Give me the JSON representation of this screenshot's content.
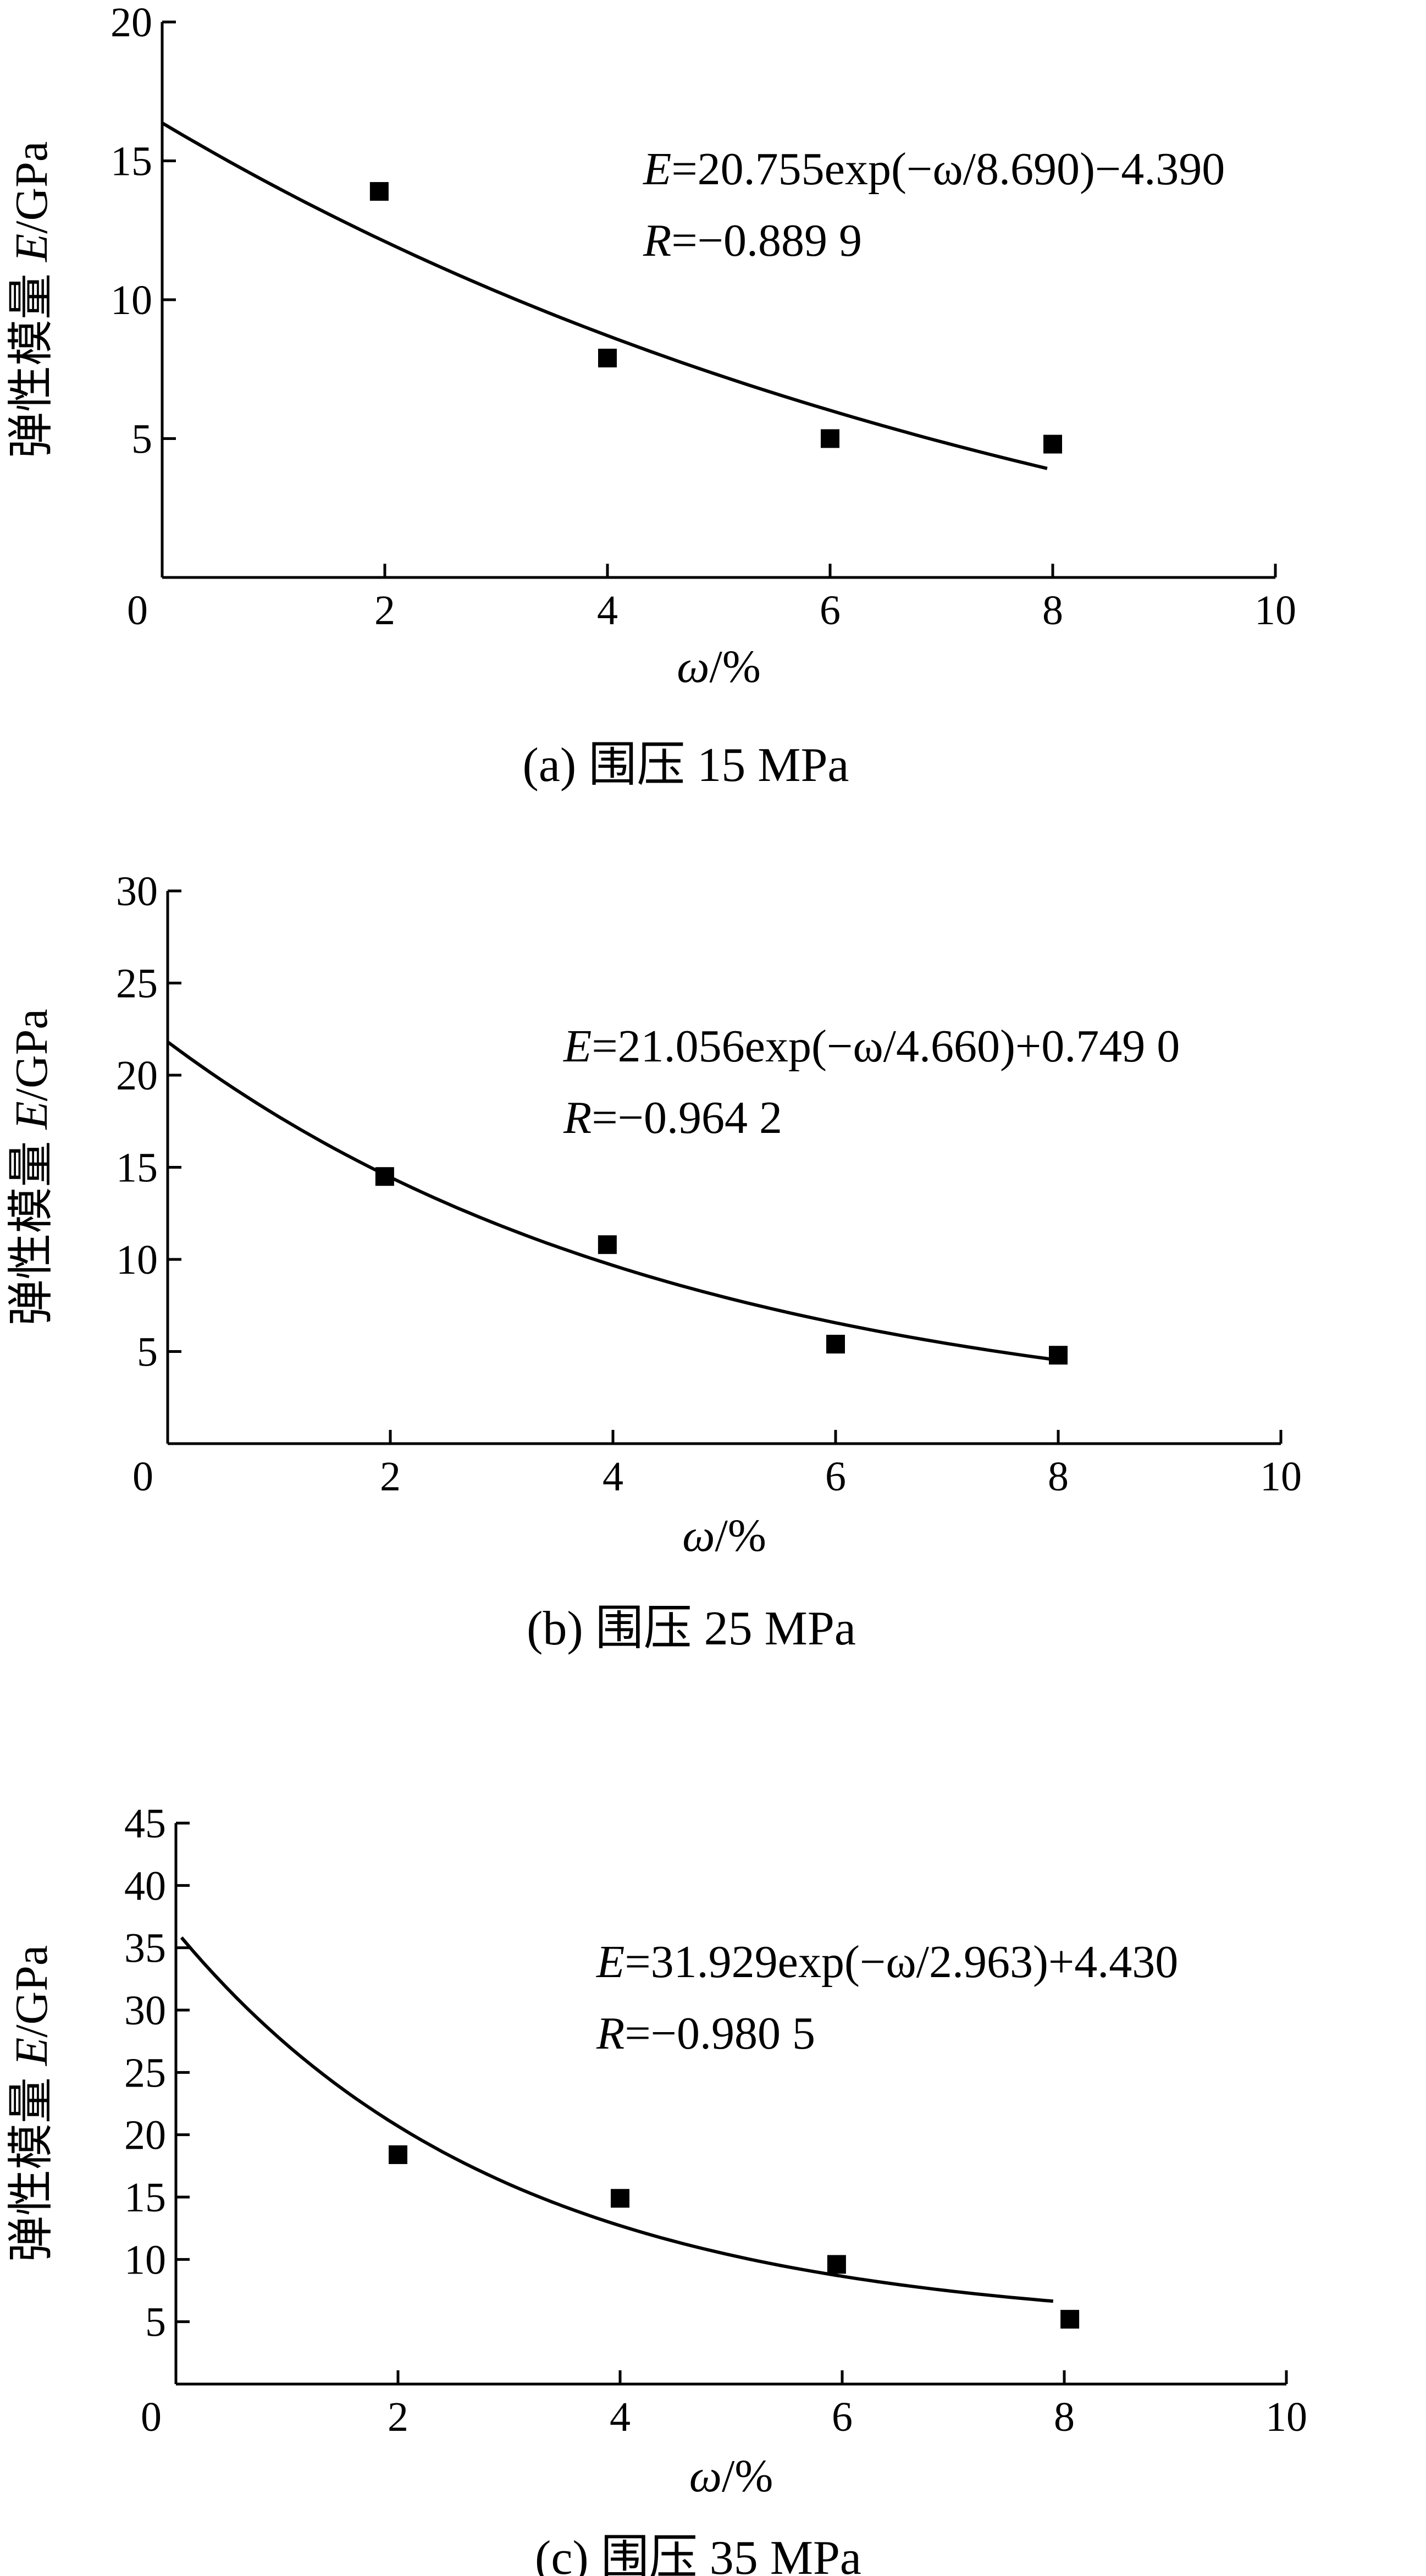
{
  "chart_data": [
    {
      "type": "scatter",
      "id": "a",
      "caption": "(a) 围压 15 MPa",
      "xlabel": "ω/%",
      "ylabel": "弹性模量 E/GPa",
      "xlim": [
        0,
        10
      ],
      "ylim": [
        0,
        20
      ],
      "xticks": [
        "0",
        "2",
        "4",
        "6",
        "8",
        "10"
      ],
      "yticks": [
        "5",
        "10",
        "15",
        "20"
      ],
      "points": {
        "x": [
          1.95,
          4.0,
          6.0,
          8.0
        ],
        "y": [
          13.9,
          7.9,
          5.0,
          4.8
        ]
      },
      "fit": {
        "A": 20.755,
        "t": 8.69,
        "C": -4.39,
        "x_range": [
          0,
          7.95
        ]
      },
      "equation": "E=20.755exp(−ω/8.690)−4.390",
      "r_text": "R=−0.889 9"
    },
    {
      "type": "scatter",
      "id": "b",
      "caption": "(b) 围压 25 MPa",
      "xlabel": "ω/%",
      "ylabel": "弹性模量 E/GPa",
      "xlim": [
        0,
        10
      ],
      "ylim": [
        0,
        30
      ],
      "xticks": [
        "0",
        "2",
        "4",
        "6",
        "8",
        "10"
      ],
      "yticks": [
        "5",
        "10",
        "15",
        "20",
        "25",
        "30"
      ],
      "points": {
        "x": [
          1.95,
          3.95,
          6.0,
          8.0
        ],
        "y": [
          14.5,
          10.8,
          5.4,
          4.8
        ]
      },
      "fit": {
        "A": 21.056,
        "t": 4.66,
        "C": 0.749,
        "x_range": [
          0,
          8.0
        ]
      },
      "equation": "E=21.056exp(−ω/4.660)+0.749 0",
      "r_text": "R=−0.964 2"
    },
    {
      "type": "scatter",
      "id": "c",
      "caption": "(c) 围压 35 MPa",
      "xlabel": "ω/%",
      "ylabel": "弹性模量 E/GPa",
      "xlim": [
        0,
        10
      ],
      "ylim": [
        0,
        45
      ],
      "xticks": [
        "0",
        "2",
        "4",
        "6",
        "8",
        "10"
      ],
      "yticks": [
        "5",
        "10",
        "15",
        "20",
        "25",
        "30",
        "35",
        "40",
        "45"
      ],
      "points": {
        "x": [
          2.0,
          4.0,
          5.95,
          8.05
        ],
        "y": [
          18.4,
          14.9,
          9.6,
          5.2
        ]
      },
      "fit": {
        "A": 31.929,
        "t": 2.963,
        "C": 4.43,
        "x_range": [
          0.05,
          7.9
        ]
      },
      "equation": "E=31.929exp(−ω/2.963)+4.430",
      "r_text": "R=−0.980 5"
    }
  ]
}
